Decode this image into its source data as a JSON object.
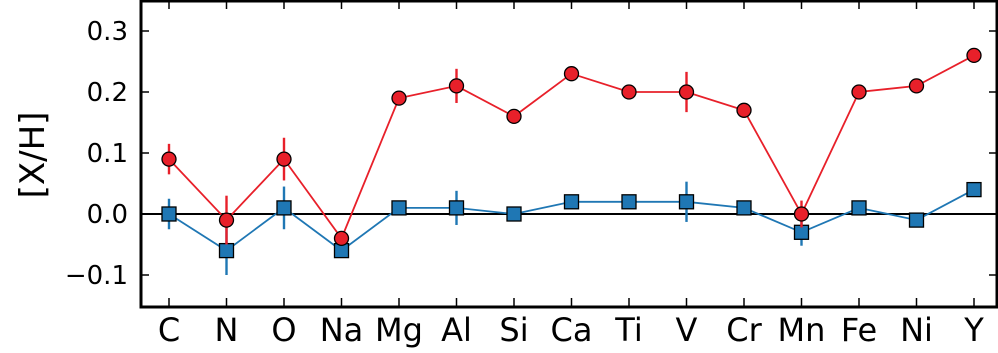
{
  "chart_data": {
    "type": "line",
    "title": "",
    "xlabel": "",
    "ylabel": "[X/H]",
    "categories": [
      "C",
      "N",
      "O",
      "Na",
      "Mg",
      "Al",
      "Si",
      "Ca",
      "Ti",
      "V",
      "Cr",
      "Mn",
      "Fe",
      "Ni",
      "Y"
    ],
    "yticks": [
      "0.3",
      "0.2",
      "0.1",
      "0.0",
      "−0.1"
    ],
    "ytick_values": [
      0.3,
      0.2,
      0.1,
      0.0,
      -0.1
    ],
    "ylim": [
      -0.15,
      0.35
    ],
    "zero_line": 0.0,
    "grid": false,
    "series": [
      {
        "marker": "circle",
        "color": "#e8202a",
        "values": [
          0.09,
          -0.01,
          0.09,
          -0.04,
          0.19,
          0.21,
          0.16,
          0.23,
          0.2,
          0.2,
          0.17,
          0.0,
          0.2,
          0.21,
          0.26
        ],
        "errors": [
          0.025,
          0.04,
          0.035,
          0.0,
          0.0,
          0.028,
          0.0,
          0.0,
          0.0,
          0.033,
          0.0,
          0.022,
          0.0,
          0.0,
          0.0
        ]
      },
      {
        "marker": "square",
        "color": "#1f77b4",
        "values": [
          0.0,
          -0.06,
          0.01,
          -0.06,
          0.01,
          0.01,
          0.0,
          0.02,
          0.02,
          0.02,
          0.01,
          -0.03,
          0.01,
          -0.01,
          0.04
        ],
        "errors": [
          0.025,
          0.04,
          0.035,
          0.0,
          0.0,
          0.028,
          0.0,
          0.0,
          0.0,
          0.033,
          0.0,
          0.022,
          0.0,
          0.0,
          0.0
        ]
      }
    ]
  }
}
